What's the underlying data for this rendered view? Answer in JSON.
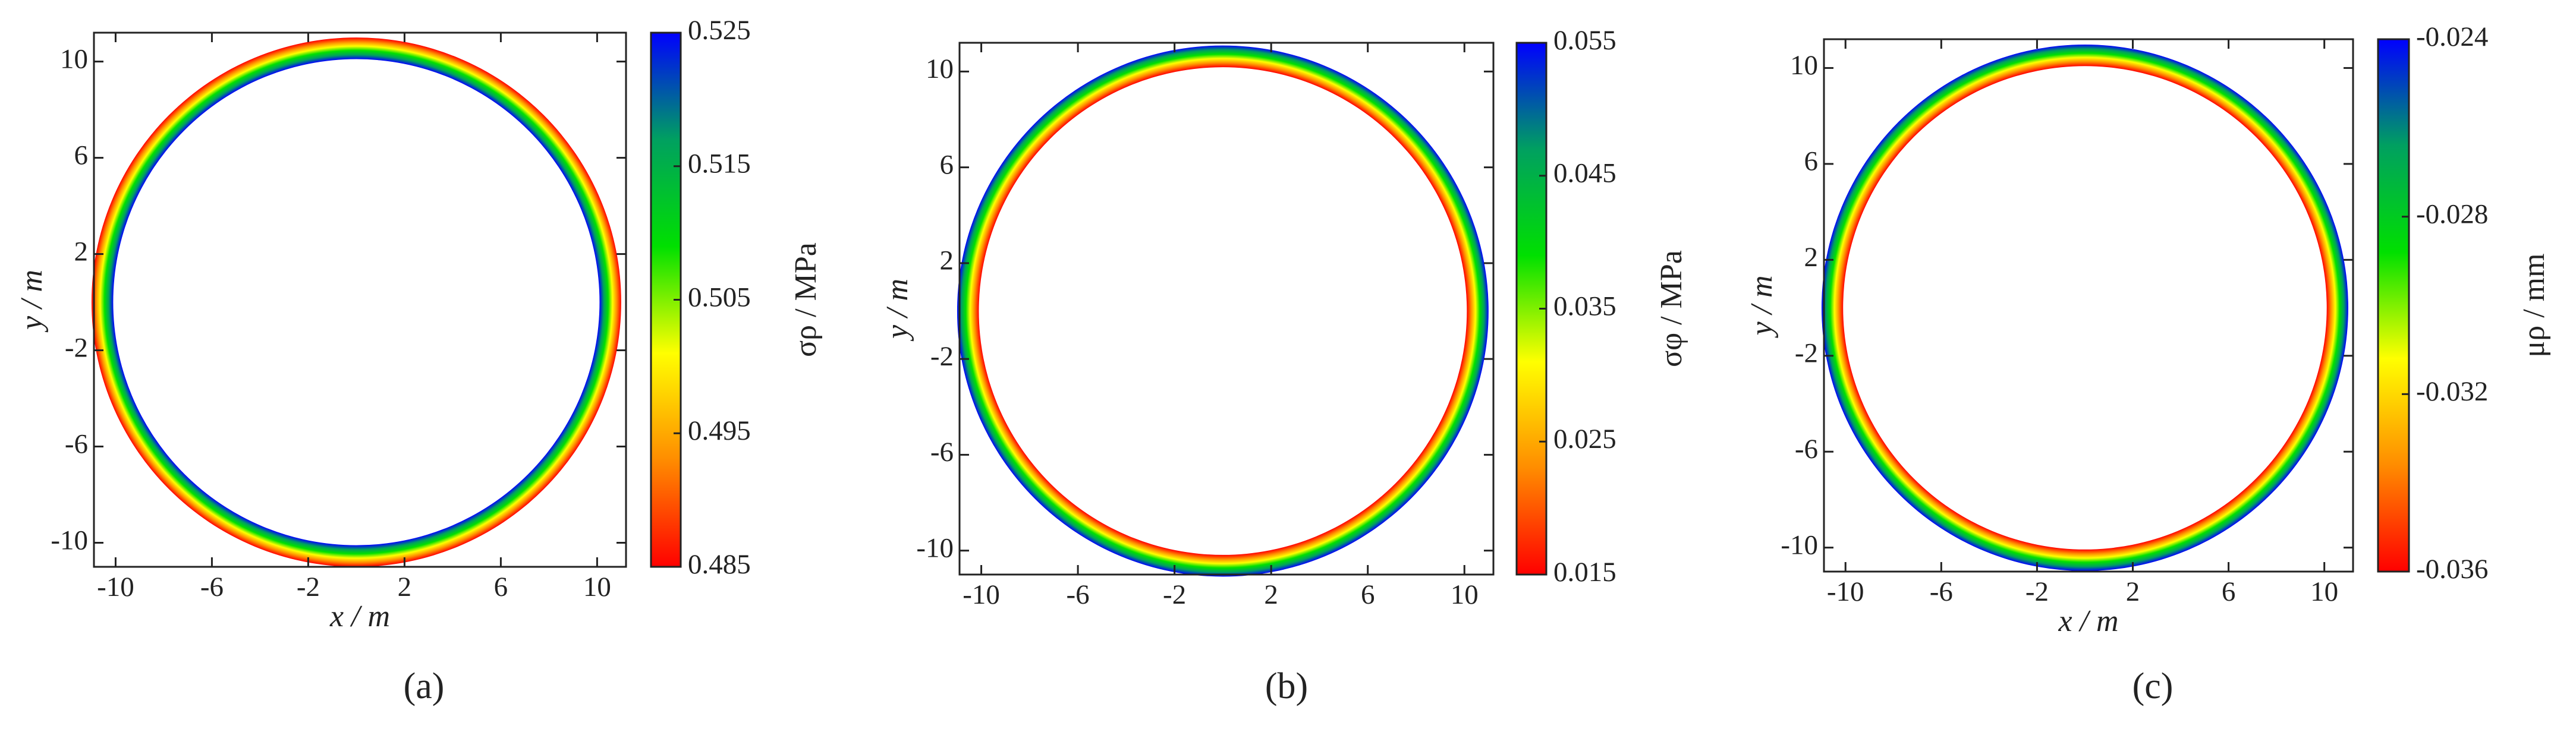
{
  "chart_data": [
    {
      "type": "ring",
      "panel_label": "(a)",
      "xlabel": "x / m",
      "ylabel": "y / m",
      "colorbar_label": "σρ / MPa",
      "radii": [
        10.1,
        11.0
      ],
      "values": [
        0.525,
        0.485
      ],
      "xlim": [
        -10.9,
        11.2
      ],
      "ylim": [
        -11.0,
        11.2
      ],
      "xticks": [
        -10,
        -6,
        -2,
        2,
        6,
        10
      ],
      "yticks": [
        -10,
        -6,
        -2,
        2,
        6,
        10
      ],
      "clim": [
        0.485,
        0.525
      ],
      "cticks": [
        0.485,
        0.495,
        0.505,
        0.515,
        0.525
      ],
      "colormap": [
        "#ff0000",
        "#ff8c00",
        "#ffff00",
        "#00e000",
        "#00a060",
        "#0000ff"
      ]
    },
    {
      "type": "ring",
      "panel_label": "(b)",
      "ylabel": "y / m",
      "colorbar_label": "σφ / MPa",
      "radii": [
        10.1,
        11.0
      ],
      "values": [
        0.015,
        0.055
      ],
      "xlim": [
        -10.9,
        11.2
      ],
      "ylim": [
        -11.0,
        11.2
      ],
      "xticks": [
        -10,
        -6,
        -2,
        2,
        6,
        10
      ],
      "yticks": [
        -10,
        -6,
        -2,
        2,
        6,
        10
      ],
      "clim": [
        0.015,
        0.055
      ],
      "cticks": [
        0.015,
        0.025,
        0.035,
        0.045,
        0.055
      ],
      "colormap": [
        "#ff0000",
        "#ff8c00",
        "#ffff00",
        "#00e000",
        "#00a060",
        "#0000ff"
      ]
    },
    {
      "type": "ring",
      "panel_label": "(c)",
      "xlabel": "x / m",
      "ylabel": "y / m",
      "colorbar_label": "μρ / mm",
      "radii": [
        10.1,
        11.0
      ],
      "values": [
        -0.036,
        -0.024
      ],
      "xlim": [
        -10.9,
        11.2
      ],
      "ylim": [
        -11.0,
        11.2
      ],
      "xticks": [
        -10,
        -6,
        -2,
        2,
        6,
        10
      ],
      "yticks": [
        -10,
        -6,
        -2,
        2,
        6,
        10
      ],
      "clim": [
        -0.036,
        -0.024
      ],
      "cticks": [
        -0.036,
        -0.032,
        -0.028,
        -0.024
      ],
      "colormap": [
        "#ff0000",
        "#ff8c00",
        "#ffff00",
        "#00e000",
        "#00a060",
        "#0000ff"
      ]
    }
  ]
}
